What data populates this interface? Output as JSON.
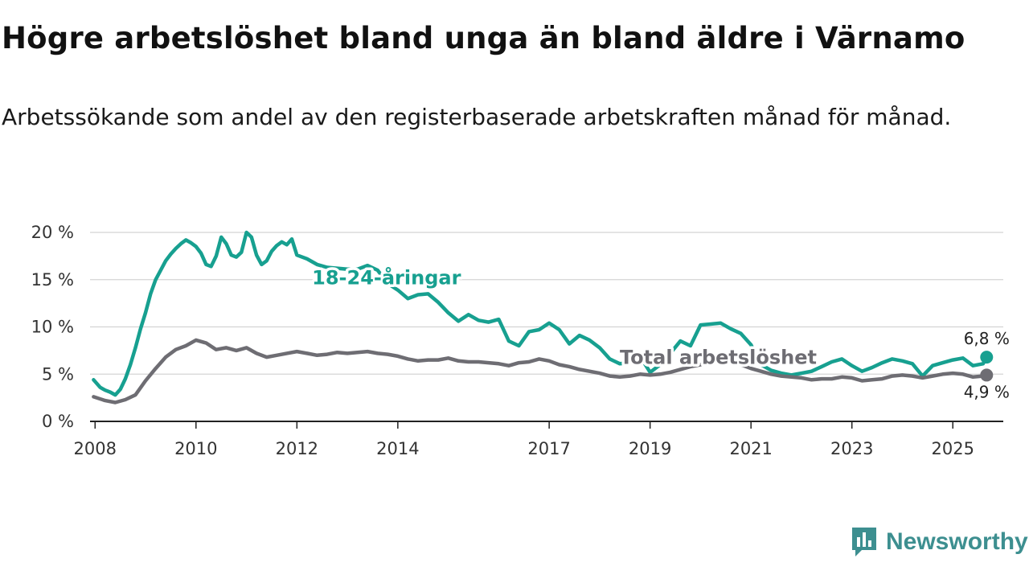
{
  "header": {
    "title": "Högre arbetslöshet bland unga än bland äldre i Värnamo",
    "subtitle": "Arbetssökande som andel av den registerbaserade arbetskraften månad för månad."
  },
  "brand": {
    "name": "Newsworthy",
    "icon": "newsworthy-logo-icon",
    "color": "#3d8f90"
  },
  "chart_data": {
    "type": "line",
    "title": "Högre arbetslöshet bland unga än bland äldre i Värnamo",
    "subtitle": "Arbetssökande som andel av den registerbaserade arbetskraften månad för månad.",
    "xlabel": "",
    "ylabel": "",
    "xlim": [
      2007.9,
      2026.0
    ],
    "ylim": [
      0,
      20
    ],
    "x_ticks": [
      2008,
      2010,
      2012,
      2014,
      2017,
      2019,
      2021,
      2023,
      2025
    ],
    "x_tick_labels": [
      "2008",
      "2010",
      "2012",
      "2014",
      "2017",
      "2019",
      "2021",
      "2023",
      "2025"
    ],
    "y_ticks": [
      0,
      5,
      10,
      15,
      20
    ],
    "y_tick_labels": [
      "0 %",
      "5 %",
      "10 %",
      "15 %",
      "20 %"
    ],
    "grid": true,
    "legend": "inline labels",
    "series": [
      {
        "name": "18-24-åringar",
        "label": "18-24-åringar",
        "color": "#17a090",
        "end_label": "6,8 %",
        "label_at": [
          2012.3,
          14.5
        ],
        "x": [
          2007.97,
          2008.1,
          2008.2,
          2008.3,
          2008.4,
          2008.5,
          2008.6,
          2008.7,
          2008.8,
          2008.9,
          2009.0,
          2009.1,
          2009.2,
          2009.3,
          2009.4,
          2009.5,
          2009.6,
          2009.7,
          2009.8,
          2009.9,
          2010.0,
          2010.1,
          2010.2,
          2010.3,
          2010.4,
          2010.5,
          2010.6,
          2010.7,
          2010.8,
          2010.9,
          2011.0,
          2011.1,
          2011.2,
          2011.3,
          2011.4,
          2011.5,
          2011.6,
          2011.7,
          2011.8,
          2011.9,
          2012.0,
          2012.2,
          2012.4,
          2012.6,
          2012.8,
          2013.0,
          2013.2,
          2013.4,
          2013.6,
          2013.8,
          2014.0,
          2014.2,
          2014.4,
          2014.6,
          2014.8,
          2015.0,
          2015.2,
          2015.4,
          2015.6,
          2015.8,
          2016.0,
          2016.2,
          2016.4,
          2016.6,
          2016.8,
          2017.0,
          2017.2,
          2017.4,
          2017.6,
          2017.8,
          2018.0,
          2018.2,
          2018.4,
          2018.6,
          2018.8,
          2019.0,
          2019.2,
          2019.4,
          2019.6,
          2019.8,
          2020.0,
          2020.2,
          2020.4,
          2020.6,
          2020.8,
          2021.0,
          2021.2,
          2021.4,
          2021.6,
          2021.8,
          2022.0,
          2022.2,
          2022.4,
          2022.6,
          2022.8,
          2023.0,
          2023.2,
          2023.4,
          2023.6,
          2023.8,
          2024.0,
          2024.2,
          2024.4,
          2024.6,
          2024.8,
          2025.0,
          2025.2,
          2025.4,
          2025.6,
          2025.67
        ],
        "values": [
          4.4,
          3.6,
          3.3,
          3.1,
          2.8,
          3.4,
          4.5,
          6.0,
          7.8,
          9.8,
          11.5,
          13.5,
          15.0,
          16.0,
          17.0,
          17.7,
          18.3,
          18.8,
          19.2,
          18.9,
          18.5,
          17.8,
          16.6,
          16.4,
          17.5,
          19.5,
          18.8,
          17.6,
          17.4,
          17.9,
          20.0,
          19.5,
          17.6,
          16.6,
          17.0,
          18.0,
          18.6,
          19.0,
          18.7,
          19.3,
          17.6,
          17.2,
          16.6,
          16.3,
          16.2,
          16.1,
          16.1,
          16.5,
          16.0,
          14.6,
          13.9,
          13.0,
          13.4,
          13.5,
          12.6,
          11.5,
          10.6,
          11.3,
          10.7,
          10.5,
          10.8,
          8.5,
          8.0,
          9.5,
          9.7,
          10.4,
          9.7,
          8.2,
          9.1,
          8.6,
          7.8,
          6.6,
          6.1,
          6.2,
          6.9,
          5.2,
          6.0,
          7.2,
          8.5,
          8.0,
          10.2,
          10.3,
          10.4,
          9.8,
          9.3,
          8.1,
          6.0,
          5.4,
          5.1,
          4.9,
          5.1,
          5.3,
          5.8,
          6.3,
          6.6,
          5.9,
          5.3,
          5.7,
          6.2,
          6.6,
          6.4,
          6.1,
          4.8,
          5.9,
          6.2,
          6.5,
          6.7,
          5.9,
          6.1,
          6.8
        ]
      },
      {
        "name": "Total arbetslöshet",
        "label": "Total arbetslöshet",
        "color": "#6e6d73",
        "end_label": "4,9 %",
        "label_at": [
          2018.4,
          6.1
        ],
        "x": [
          2007.97,
          2008.2,
          2008.4,
          2008.6,
          2008.8,
          2009.0,
          2009.2,
          2009.4,
          2009.6,
          2009.8,
          2010.0,
          2010.2,
          2010.4,
          2010.6,
          2010.8,
          2011.0,
          2011.2,
          2011.4,
          2011.6,
          2011.8,
          2012.0,
          2012.2,
          2012.4,
          2012.6,
          2012.8,
          2013.0,
          2013.2,
          2013.4,
          2013.6,
          2013.8,
          2014.0,
          2014.2,
          2014.4,
          2014.6,
          2014.8,
          2015.0,
          2015.2,
          2015.4,
          2015.6,
          2015.8,
          2016.0,
          2016.2,
          2016.4,
          2016.6,
          2016.8,
          2017.0,
          2017.2,
          2017.4,
          2017.6,
          2017.8,
          2018.0,
          2018.2,
          2018.4,
          2018.6,
          2018.8,
          2019.0,
          2019.2,
          2019.4,
          2019.6,
          2019.8,
          2020.0,
          2020.2,
          2020.4,
          2020.6,
          2020.8,
          2021.0,
          2021.2,
          2021.4,
          2021.6,
          2021.8,
          2022.0,
          2022.2,
          2022.4,
          2022.6,
          2022.8,
          2023.0,
          2023.2,
          2023.4,
          2023.6,
          2023.8,
          2024.0,
          2024.2,
          2024.4,
          2024.6,
          2024.8,
          2025.0,
          2025.2,
          2025.4,
          2025.6,
          2025.67
        ],
        "values": [
          2.6,
          2.2,
          2.0,
          2.3,
          2.8,
          4.3,
          5.6,
          6.8,
          7.6,
          8.0,
          8.6,
          8.3,
          7.6,
          7.8,
          7.5,
          7.8,
          7.2,
          6.8,
          7.0,
          7.2,
          7.4,
          7.2,
          7.0,
          7.1,
          7.3,
          7.2,
          7.3,
          7.4,
          7.2,
          7.1,
          6.9,
          6.6,
          6.4,
          6.5,
          6.5,
          6.7,
          6.4,
          6.3,
          6.3,
          6.2,
          6.1,
          5.9,
          6.2,
          6.3,
          6.6,
          6.4,
          6.0,
          5.8,
          5.5,
          5.3,
          5.1,
          4.8,
          4.7,
          4.8,
          5.0,
          4.9,
          5.0,
          5.2,
          5.5,
          5.8,
          6.0,
          6.3,
          6.5,
          6.3,
          6.0,
          5.6,
          5.3,
          5.0,
          4.8,
          4.7,
          4.6,
          4.4,
          4.5,
          4.5,
          4.7,
          4.6,
          4.3,
          4.4,
          4.5,
          4.8,
          4.9,
          4.8,
          4.6,
          4.8,
          5.0,
          5.1,
          5.0,
          4.7,
          4.8,
          4.9
        ]
      }
    ]
  }
}
